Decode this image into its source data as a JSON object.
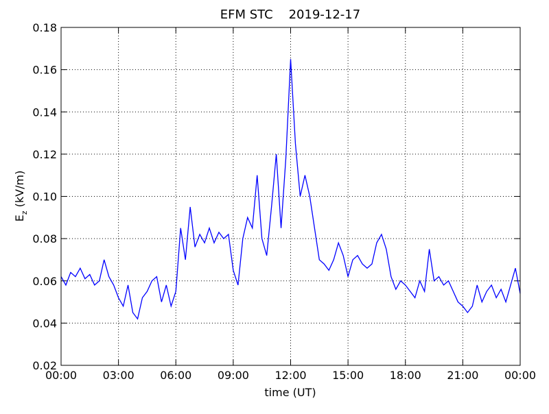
{
  "chart_data": {
    "type": "line",
    "title": "EFM STC    2019-12-17",
    "x_label": "time (UT)",
    "y_label": {
      "main": "E",
      "sub": "z",
      "unit": " (kV/m)"
    },
    "grid": true,
    "xlim": [
      0,
      24
    ],
    "xticks": [
      {
        "value": 0,
        "label": "00:00"
      },
      {
        "value": 3,
        "label": "03:00"
      },
      {
        "value": 6,
        "label": "06:00"
      },
      {
        "value": 9,
        "label": "09:00"
      },
      {
        "value": 12,
        "label": "12:00"
      },
      {
        "value": 15,
        "label": "15:00"
      },
      {
        "value": 18,
        "label": "18:00"
      },
      {
        "value": 21,
        "label": "21:00"
      },
      {
        "value": 24,
        "label": "00:00"
      }
    ],
    "ylim": [
      0.02,
      0.18
    ],
    "yticks": [
      0.02,
      0.04,
      0.06,
      0.08,
      {
        "value": 0.1,
        "label": "0.10"
      },
      0.12,
      0.14,
      0.16,
      0.18
    ],
    "x": [
      0,
      0.25,
      0.5,
      0.75,
      1,
      1.25,
      1.5,
      1.75,
      2,
      2.25,
      2.5,
      2.75,
      3,
      3.25,
      3.5,
      3.75,
      4,
      4.25,
      4.5,
      4.75,
      5,
      5.25,
      5.5,
      5.75,
      6,
      6.25,
      6.5,
      6.75,
      7,
      7.25,
      7.5,
      7.75,
      8,
      8.25,
      8.5,
      8.75,
      9,
      9.25,
      9.5,
      9.75,
      10,
      10.25,
      10.5,
      10.75,
      11,
      11.25,
      11.5,
      11.75,
      12,
      12.25,
      12.5,
      12.75,
      13,
      13.25,
      13.5,
      13.75,
      14,
      14.25,
      14.5,
      14.75,
      15,
      15.25,
      15.5,
      15.75,
      16,
      16.25,
      16.5,
      16.75,
      17,
      17.25,
      17.5,
      17.75,
      18,
      18.25,
      18.5,
      18.75,
      19,
      19.25,
      19.5,
      19.75,
      20,
      20.25,
      20.5,
      20.75,
      21,
      21.25,
      21.5,
      21.75,
      22,
      22.25,
      22.5,
      22.75,
      23,
      23.25,
      23.5,
      23.75,
      24
    ],
    "series": [
      {
        "name": "Ez",
        "color": "#0000ff",
        "values": [
          0.062,
          0.058,
          0.064,
          0.062,
          0.066,
          0.061,
          0.063,
          0.058,
          0.06,
          0.07,
          0.062,
          0.058,
          0.052,
          0.048,
          0.058,
          0.045,
          0.042,
          0.052,
          0.055,
          0.06,
          0.062,
          0.05,
          0.058,
          0.048,
          0.055,
          0.085,
          0.07,
          0.095,
          0.076,
          0.082,
          0.078,
          0.085,
          0.078,
          0.083,
          0.08,
          0.082,
          0.065,
          0.058,
          0.08,
          0.09,
          0.085,
          0.11,
          0.08,
          0.072,
          0.095,
          0.12,
          0.085,
          0.118,
          0.165,
          0.125,
          0.1,
          0.11,
          0.1,
          0.085,
          0.07,
          0.068,
          0.065,
          0.07,
          0.078,
          0.072,
          0.062,
          0.07,
          0.072,
          0.068,
          0.066,
          0.068,
          0.078,
          0.082,
          0.075,
          0.062,
          0.056,
          0.06,
          0.058,
          0.055,
          0.052,
          0.06,
          0.055,
          0.075,
          0.06,
          0.062,
          0.058,
          0.06,
          0.055,
          0.05,
          0.048,
          0.045,
          0.048,
          0.058,
          0.05,
          0.055,
          0.058,
          0.052,
          0.056,
          0.05,
          0.058,
          0.066,
          0.054
        ]
      }
    ]
  }
}
